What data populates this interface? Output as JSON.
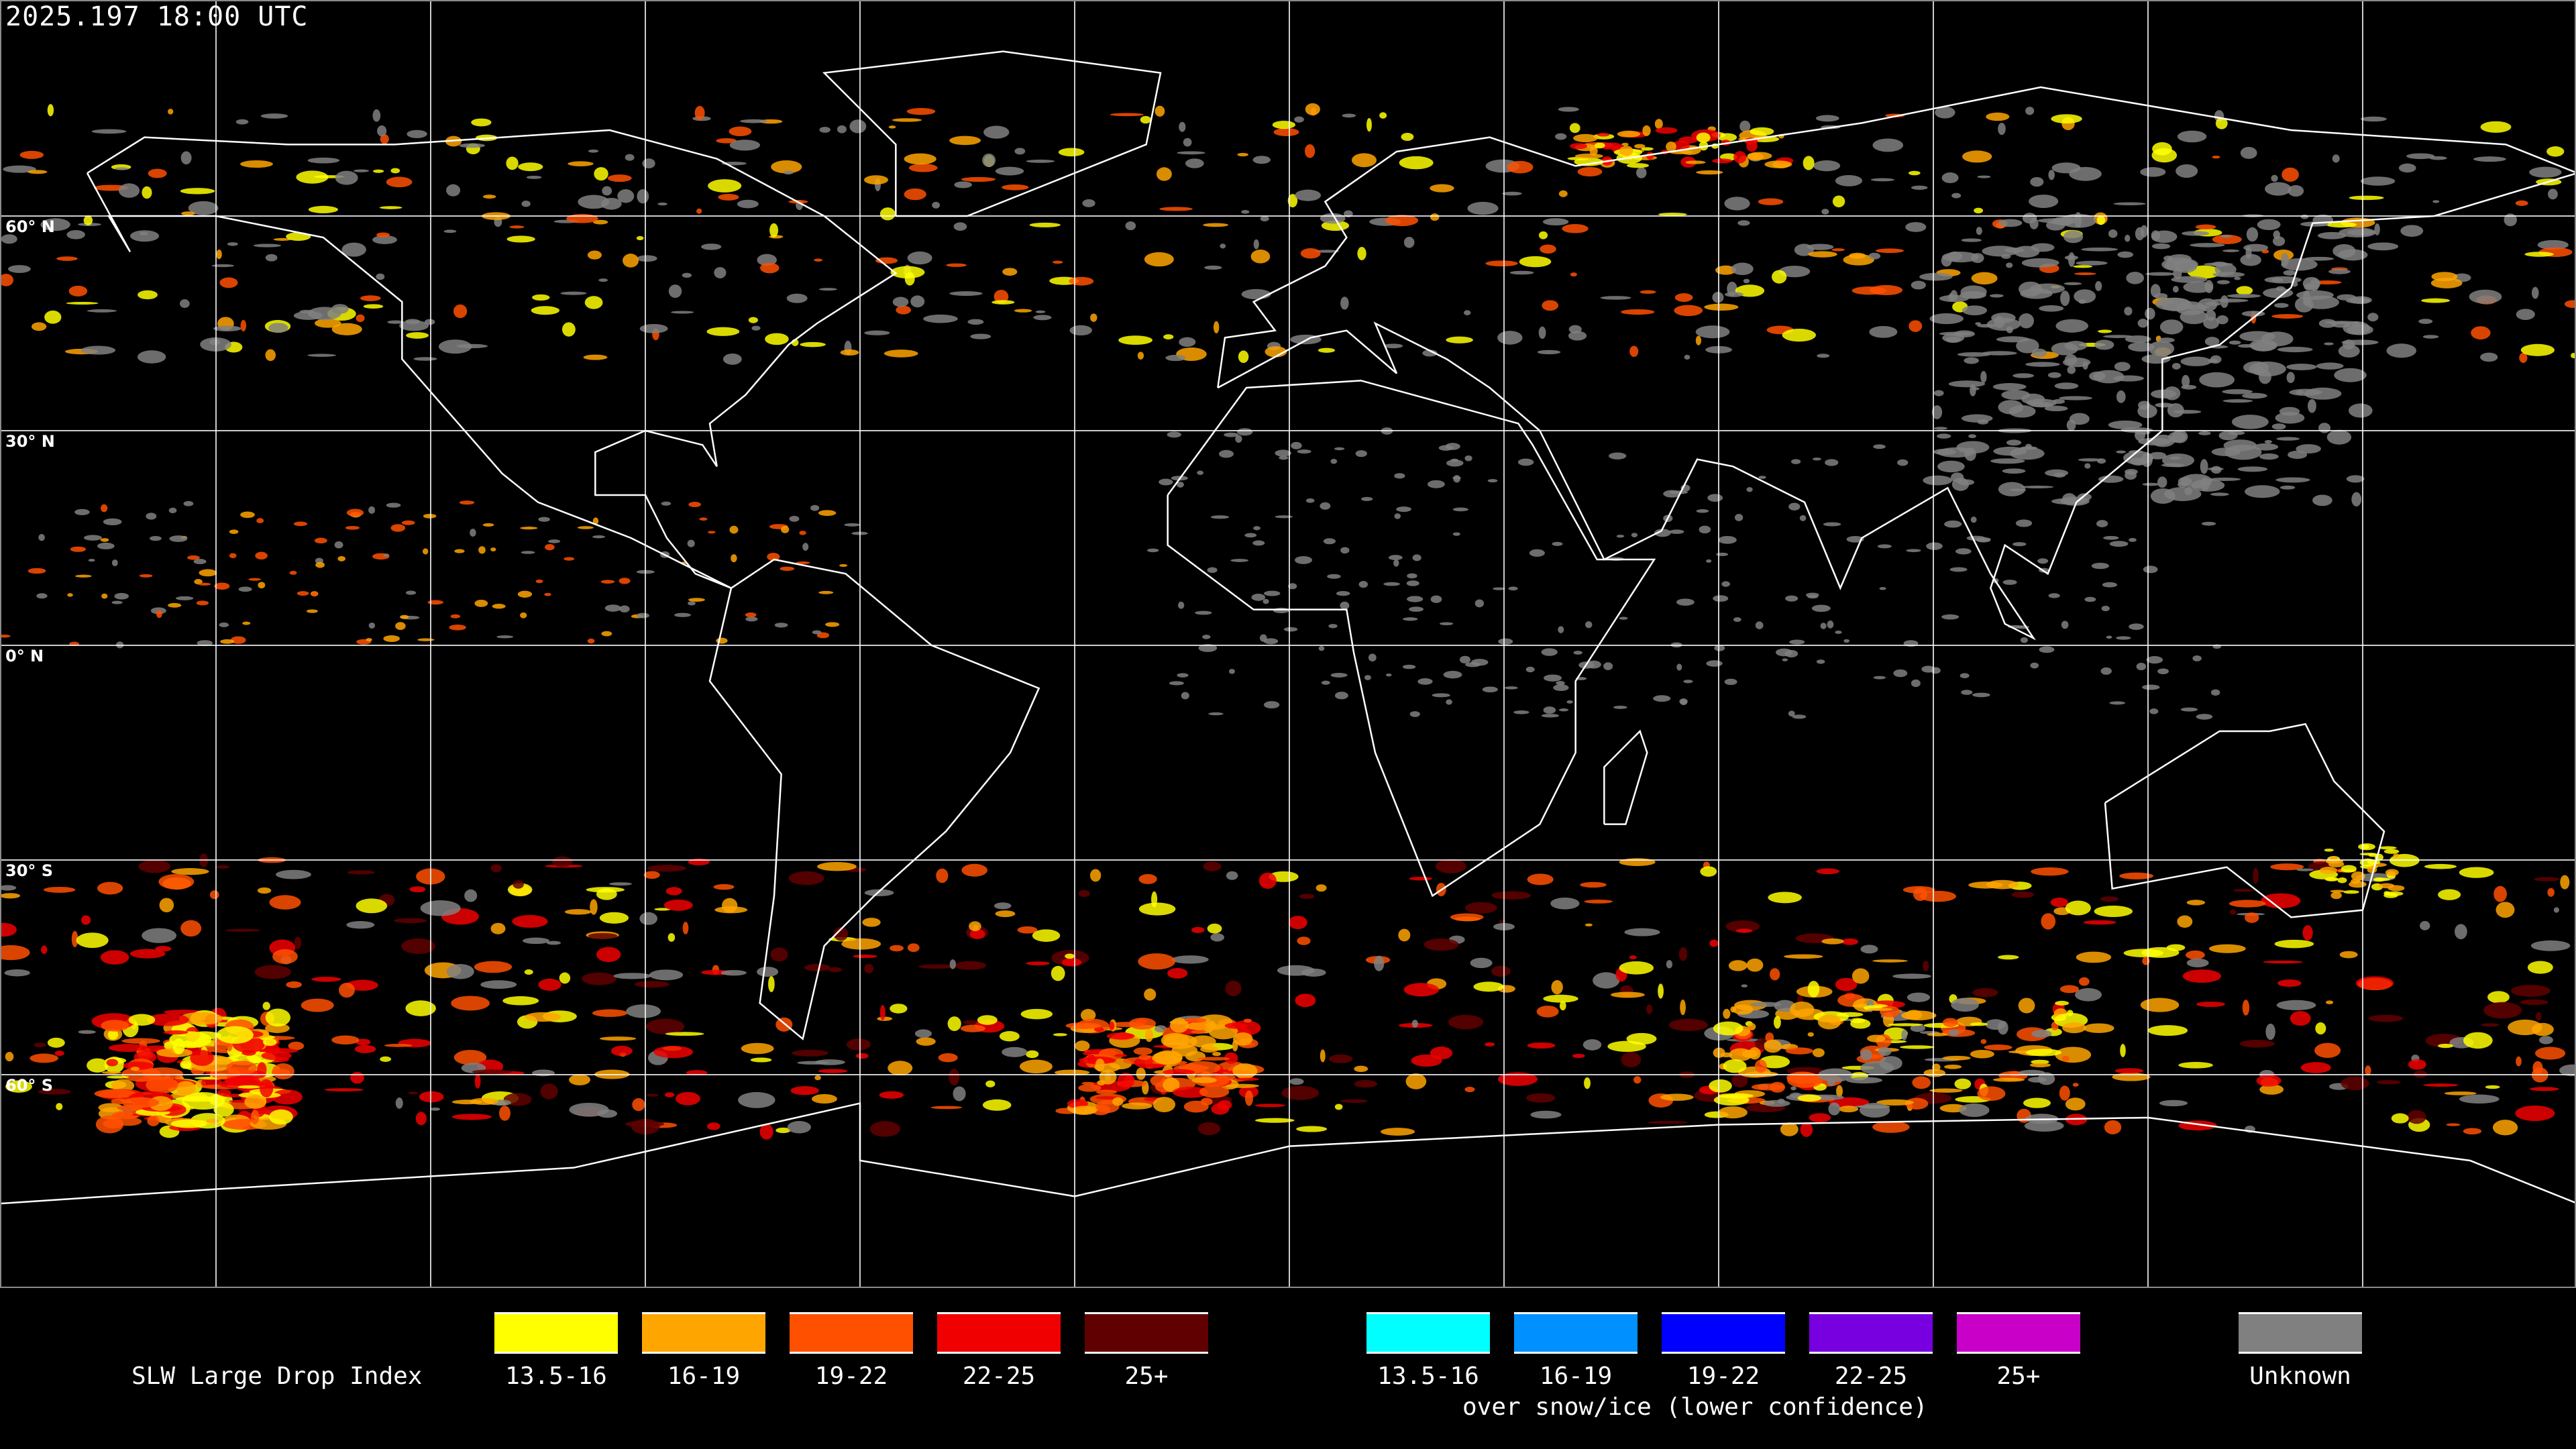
{
  "timestamp": "2025.197 18:00 UTC",
  "latitude_labels": [
    "60° N",
    "30° N",
    "0° N",
    "30° S",
    "60° S"
  ],
  "legend": {
    "title": "SLW Large Drop Index",
    "main_bins": [
      {
        "label": "13.5-16",
        "color": "#ffff00"
      },
      {
        "label": "16-19",
        "color": "#ffa500"
      },
      {
        "label": "19-22",
        "color": "#ff5000"
      },
      {
        "label": "22-25",
        "color": "#f00000"
      },
      {
        "label": "25+",
        "color": "#600000"
      }
    ],
    "snow_bins": [
      {
        "label": "13.5-16",
        "color": "#00ffff"
      },
      {
        "label": "16-19",
        "color": "#0090ff"
      },
      {
        "label": "19-22",
        "color": "#0000ff"
      },
      {
        "label": "22-25",
        "color": "#7800e0"
      },
      {
        "label": "25+",
        "color": "#c800c8"
      }
    ],
    "snow_note": "over snow/ice (lower confidence)",
    "unknown": {
      "label": "Unknown",
      "color": "#808080"
    }
  }
}
